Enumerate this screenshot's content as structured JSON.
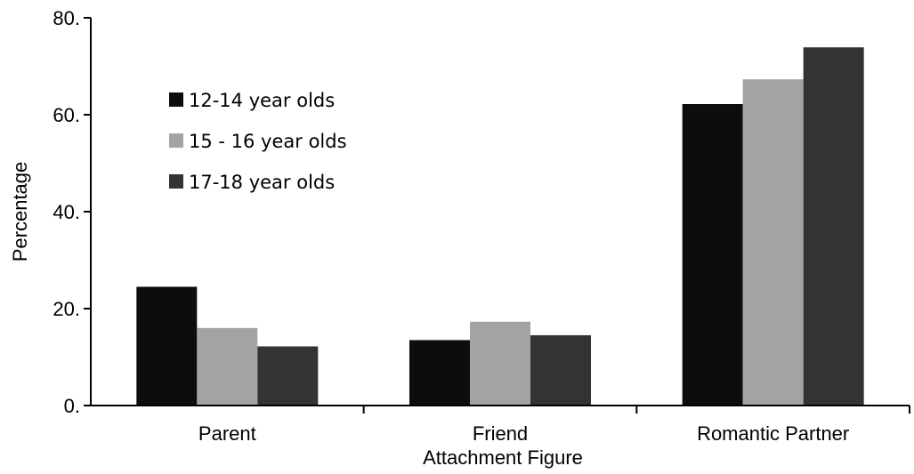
{
  "chart_data": {
    "type": "bar",
    "title": "",
    "xlabel": "Attachment Figure",
    "ylabel": "Percentage",
    "categories": [
      "Parent",
      "Friend",
      "Romantic Partner"
    ],
    "series": [
      {
        "name": "12-14 year olds",
        "color": "#0d0d0d",
        "values": [
          24.5,
          13.5,
          62.2
        ]
      },
      {
        "name": "15 - 16 year olds",
        "color": "#a3a3a3",
        "values": [
          16.0,
          17.3,
          67.3
        ]
      },
      {
        "name": "17-18 year olds",
        "color": "#333333",
        "values": [
          12.2,
          14.5,
          73.9
        ]
      }
    ],
    "ylim": [
      0,
      80
    ],
    "yticks": [
      0,
      20,
      40,
      60,
      80
    ],
    "ytick_labels": [
      "0.",
      "20.",
      "40.",
      "60.",
      "80."
    ],
    "grid": false,
    "legend_position": "top-left"
  }
}
